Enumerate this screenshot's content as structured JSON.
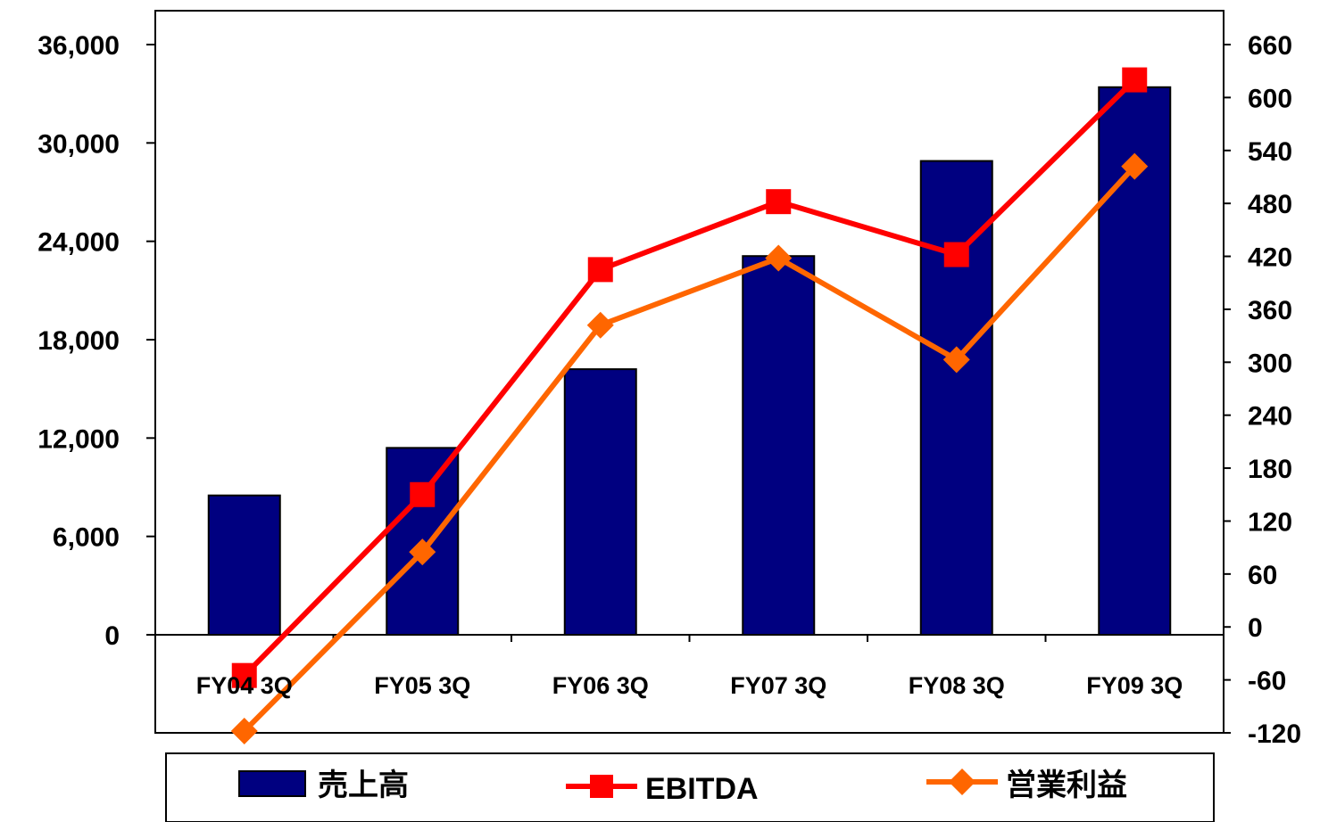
{
  "chart_data": {
    "type": "bar",
    "categories": [
      "FY04 3Q",
      "FY05 3Q",
      "FY06 3Q",
      "FY07 3Q",
      "FY08 3Q",
      "FY09 3Q"
    ],
    "series": [
      {
        "name": "売上高",
        "type": "bar",
        "axis": "left",
        "color": "#000080",
        "values": [
          8500,
          11400,
          16200,
          23100,
          28900,
          33400
        ]
      },
      {
        "name": "EBITDA",
        "type": "line",
        "axis": "right",
        "color": "#ff0000",
        "marker": "square",
        "values": [
          -55,
          150,
          405,
          482,
          422,
          620
        ]
      },
      {
        "name": "営業利益",
        "type": "line",
        "axis": "right",
        "color": "#ff6600",
        "marker": "diamond",
        "values": [
          -118,
          85,
          342,
          418,
          303,
          522
        ]
      }
    ],
    "y_left": {
      "min": 0,
      "max": 36000,
      "ticks": [
        0,
        6000,
        12000,
        18000,
        24000,
        30000,
        36000
      ],
      "tick_labels": [
        "0",
        "6,000",
        "12,000",
        "18,000",
        "24,000",
        "30,000",
        "36,000"
      ]
    },
    "y_right": {
      "min": -120,
      "max": 660,
      "ticks": [
        -120,
        -60,
        0,
        60,
        120,
        180,
        240,
        300,
        360,
        420,
        480,
        540,
        600,
        660
      ],
      "tick_labels": [
        "-120",
        "-60",
        "0",
        "60",
        "120",
        "180",
        "240",
        "300",
        "360",
        "420",
        "480",
        "540",
        "600",
        "660"
      ]
    },
    "grid": false,
    "legend": {
      "placement": "bottom",
      "entries": [
        "売上高",
        "EBITDA",
        "営業利益"
      ]
    }
  }
}
